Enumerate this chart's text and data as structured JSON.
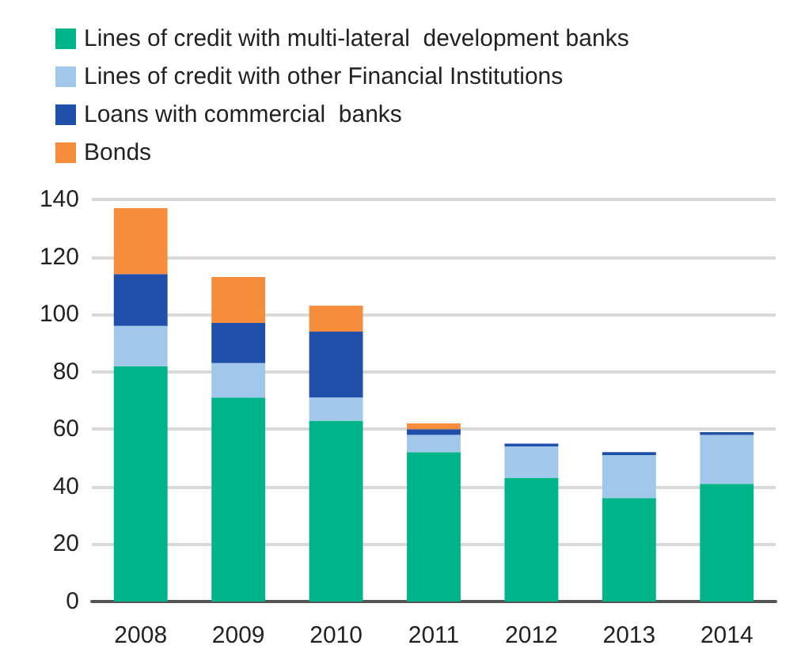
{
  "chart_data": {
    "type": "bar",
    "stacked": true,
    "categories": [
      "2008",
      "2009",
      "2010",
      "2011",
      "2012",
      "2013",
      "2014"
    ],
    "series": [
      {
        "name": "Lines of credit with multi-lateral  development banks",
        "color": "#00b48a",
        "values": [
          82,
          71,
          63,
          52,
          43,
          36,
          41
        ]
      },
      {
        "name": "Lines of credit with other Financial Institutions",
        "color": "#a1c8ea",
        "values": [
          14,
          12,
          8,
          6,
          11,
          15,
          17
        ]
      },
      {
        "name": "Loans with commercial  banks",
        "color": "#1f4fa8",
        "values": [
          18,
          14,
          23,
          2,
          1,
          1,
          1
        ]
      },
      {
        "name": "Bonds",
        "color": "#f58d3c",
        "values": [
          23,
          16,
          9,
          2,
          null,
          null,
          null
        ]
      }
    ],
    "ylim": [
      0,
      140
    ],
    "yticks": [
      0,
      20,
      40,
      60,
      80,
      100,
      120,
      140
    ],
    "grid": "y",
    "legend": "top left"
  }
}
